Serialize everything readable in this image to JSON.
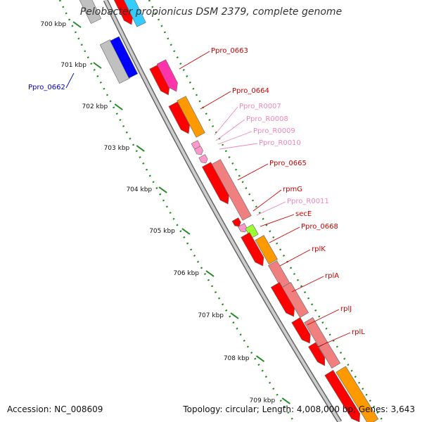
{
  "title": "Pelobacter propionicus DSM 2379, complete genome",
  "footer": {
    "accession": "Accession: NC_008609",
    "summary": "Topology: circular; Length: 4,008,000 bp; Genes: 3,643"
  },
  "kbp_ticks": [
    "700 kbp",
    "701 kbp",
    "702 kbp",
    "703 kbp",
    "704 kbp",
    "705 kbp",
    "706 kbp",
    "707 kbp",
    "708 kbp",
    "709 kbp"
  ],
  "gene_labels": [
    {
      "text": "Ppro_0662",
      "color": "#0000cc"
    },
    {
      "text": "Ppro_0663",
      "color": "#cc0000"
    },
    {
      "text": "Ppro_0664",
      "color": "#cc0000"
    },
    {
      "text": "Ppro_R0007",
      "color": "#ee88bb"
    },
    {
      "text": "Ppro_R0008",
      "color": "#ee88bb"
    },
    {
      "text": "Ppro_R0009",
      "color": "#ee88bb"
    },
    {
      "text": "Ppro_R0010",
      "color": "#ee88bb"
    },
    {
      "text": "Ppro_0665",
      "color": "#cc0000"
    },
    {
      "text": "rpmG",
      "color": "#cc0000"
    },
    {
      "text": "Ppro_R0011",
      "color": "#ee88bb"
    },
    {
      "text": "secE",
      "color": "#cc0000"
    },
    {
      "text": "Ppro_0668",
      "color": "#cc0000"
    },
    {
      "text": "rplK",
      "color": "#cc0000"
    },
    {
      "text": "rplA",
      "color": "#cc0000"
    },
    {
      "text": "rplJ",
      "color": "#cc0000"
    },
    {
      "text": "rplL",
      "color": "#cc0000"
    }
  ],
  "colors": {
    "backbone": "#aaaaaa",
    "tick": "#228822",
    "gene_red": "#ff0000",
    "gene_pink": "#f08080",
    "gene_orange": "#ff9900",
    "gene_magenta": "#ff33aa",
    "gene_lime": "#99ff33",
    "gene_blue": "#0000ff",
    "gene_gray": "#c0c0c0",
    "rna_pink": "#ff99cc"
  }
}
